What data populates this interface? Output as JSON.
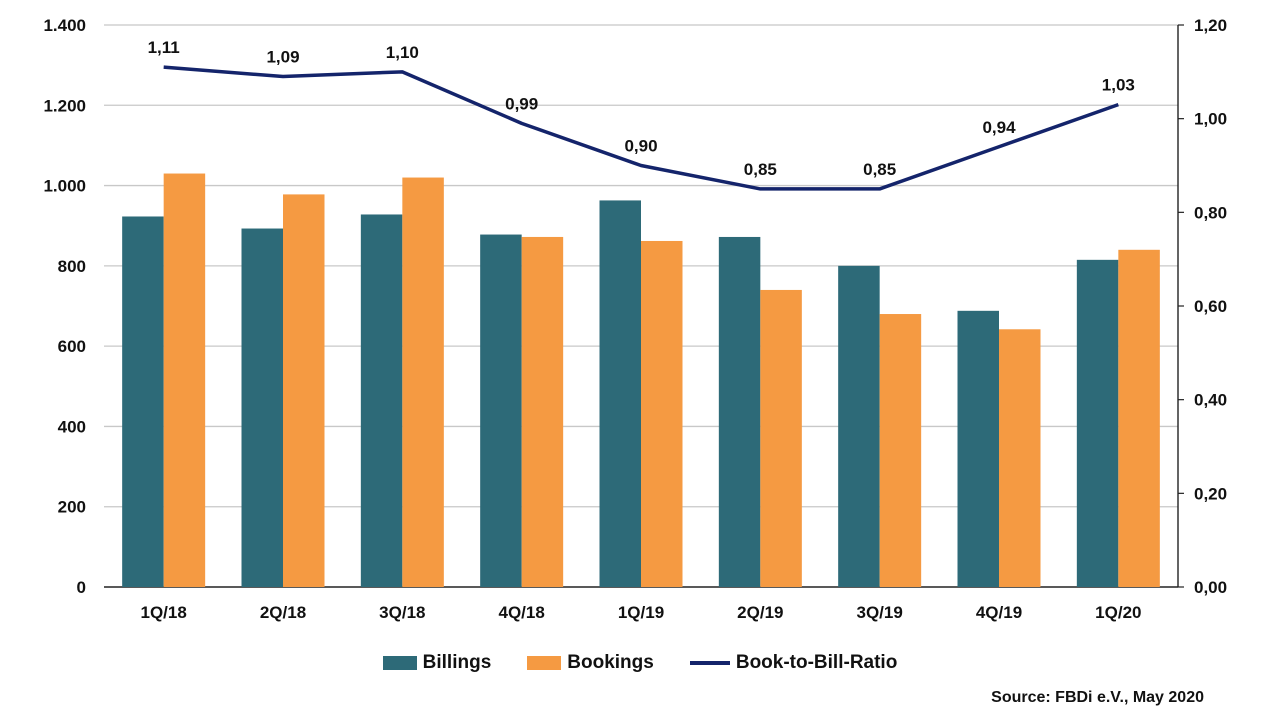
{
  "chart_data": {
    "type": "bar",
    "categories": [
      "1Q/18",
      "2Q/18",
      "3Q/18",
      "4Q/18",
      "1Q/19",
      "2Q/19",
      "3Q/19",
      "4Q/19",
      "1Q/20"
    ],
    "series": [
      {
        "name": "Billings",
        "axis": "left",
        "type": "bar",
        "color": "#2d6a78",
        "values": [
          923,
          893,
          928,
          878,
          963,
          872,
          800,
          688,
          815
        ]
      },
      {
        "name": "Bookings",
        "axis": "left",
        "type": "bar",
        "color": "#f59a42",
        "values": [
          1030,
          978,
          1020,
          872,
          862,
          740,
          680,
          642,
          840
        ]
      },
      {
        "name": "Book-to-Bill-Ratio",
        "axis": "right",
        "type": "line",
        "color": "#14246b",
        "values": [
          1.11,
          1.09,
          1.1,
          0.99,
          0.9,
          0.85,
          0.85,
          0.94,
          1.03
        ],
        "labels": [
          "1,11",
          "1,09",
          "1,10",
          "0,99",
          "0,90",
          "0,85",
          "0,85",
          "0,94",
          "1,03"
        ]
      }
    ],
    "y_left": {
      "range": [
        0,
        1400
      ],
      "ticks": [
        0,
        200,
        400,
        600,
        800,
        1000,
        1200,
        1400
      ],
      "tick_labels": [
        "0",
        "200",
        "400",
        "600",
        "800",
        "1.000",
        "1.200",
        "1.400"
      ]
    },
    "y_right": {
      "range": [
        0,
        1.2
      ],
      "ticks": [
        0,
        0.2,
        0.4,
        0.6,
        0.8,
        1.0,
        1.2
      ],
      "tick_labels": [
        "0,00",
        "0,20",
        "0,40",
        "0,60",
        "0,80",
        "1,00",
        "1,20"
      ]
    },
    "grid": true,
    "legend_position": "bottom"
  },
  "legend": {
    "billings": "Billings",
    "bookings": "Bookings",
    "ratio": "Book-to-Bill-Ratio"
  },
  "source": "Source: FBDi e.V., May 2020"
}
